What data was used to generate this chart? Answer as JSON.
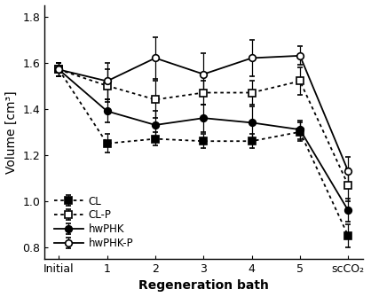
{
  "x_labels": [
    "Initial",
    "1",
    "2",
    "3",
    "4",
    "5",
    "scCO₂"
  ],
  "x_positions": [
    0,
    1,
    2,
    3,
    4,
    5,
    6
  ],
  "series": {
    "CL": {
      "y": [
        1.57,
        1.25,
        1.27,
        1.26,
        1.26,
        1.3,
        0.85
      ],
      "yerr": [
        0.03,
        0.04,
        0.03,
        0.03,
        0.03,
        0.04,
        0.05
      ],
      "color": "black",
      "linestyle": "dotted",
      "marker": "s",
      "fillstyle": "full",
      "label": "CL"
    },
    "CL-P": {
      "y": [
        1.57,
        1.5,
        1.44,
        1.47,
        1.47,
        1.52,
        1.07
      ],
      "yerr": [
        0.03,
        0.07,
        0.08,
        0.05,
        0.05,
        0.06,
        0.07
      ],
      "color": "black",
      "linestyle": "dotted",
      "marker": "s",
      "fillstyle": "none",
      "label": "CL-P"
    },
    "hwPHK": {
      "y": [
        1.57,
        1.39,
        1.33,
        1.36,
        1.34,
        1.31,
        0.96
      ],
      "yerr": [
        0.03,
        0.05,
        0.06,
        0.06,
        0.07,
        0.04,
        0.05
      ],
      "color": "black",
      "linestyle": "solid",
      "marker": "o",
      "fillstyle": "full",
      "label": "hwPHK"
    },
    "hwPHK-P": {
      "y": [
        1.57,
        1.52,
        1.62,
        1.55,
        1.62,
        1.63,
        1.13
      ],
      "yerr": [
        0.03,
        0.08,
        0.09,
        0.09,
        0.08,
        0.04,
        0.06
      ],
      "color": "black",
      "linestyle": "solid",
      "marker": "o",
      "fillstyle": "none",
      "label": "hwPHK-P"
    }
  },
  "ylabel": "Volume [cm³]",
  "xlabel": "Regeneration bath",
  "ylim": [
    0.75,
    1.85
  ],
  "yticks": [
    0.8,
    1.0,
    1.2,
    1.4,
    1.6,
    1.8
  ],
  "legend_loc": "lower left",
  "figsize": [
    4.18,
    3.35
  ],
  "dpi": 100
}
